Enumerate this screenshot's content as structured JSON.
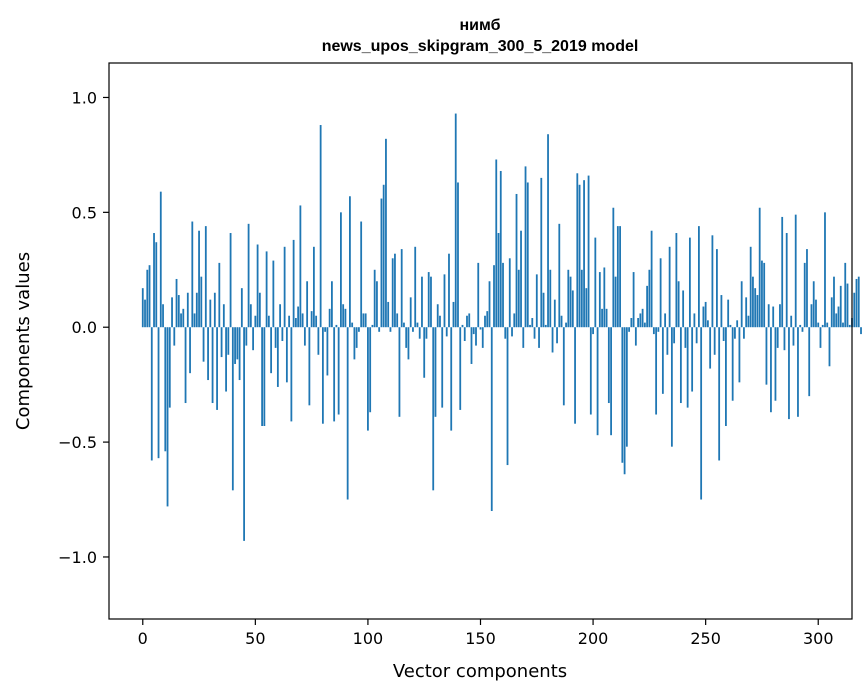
{
  "chart_data": {
    "type": "bar",
    "title": "нимб",
    "subtitle": "news_upos_skipgram_300_5_2019 model",
    "xlabel": "Vector components",
    "ylabel": "Components values",
    "xlim": [
      -15,
      315
    ],
    "ylim": [
      -1.27,
      1.15
    ],
    "xticks": [
      0,
      50,
      100,
      150,
      200,
      250,
      300
    ],
    "yticks": [
      -1.0,
      -0.5,
      0.0,
      0.5,
      1.0
    ],
    "ytick_labels": [
      "−1.0",
      "−0.5",
      "0.0",
      "0.5",
      "1.0"
    ],
    "bar_color": "#1f77b4",
    "grid": false,
    "values": [
      0.17,
      0.12,
      0.25,
      0.27,
      -0.58,
      0.41,
      0.37,
      -0.57,
      0.59,
      0.1,
      -0.54,
      -0.78,
      -0.35,
      0.13,
      -0.08,
      0.21,
      0.14,
      0.06,
      0.08,
      -0.33,
      0.15,
      -0.2,
      0.46,
      0.06,
      0.15,
      0.42,
      0.22,
      -0.15,
      0.44,
      -0.23,
      0.12,
      -0.33,
      0.15,
      -0.36,
      0.28,
      -0.13,
      0.1,
      -0.28,
      -0.12,
      0.41,
      -0.71,
      -0.16,
      -0.14,
      -0.23,
      0.17,
      -0.93,
      -0.08,
      0.45,
      0.1,
      -0.1,
      0.05,
      0.36,
      0.15,
      -0.43,
      -0.43,
      0.33,
      0.05,
      -0.2,
      0.29,
      -0.09,
      -0.26,
      0.1,
      -0.06,
      0.35,
      -0.24,
      0.05,
      -0.41,
      0.38,
      0.04,
      0.09,
      0.53,
      0.06,
      -0.08,
      0.2,
      -0.34,
      0.07,
      0.35,
      0.05,
      -0.12,
      0.88,
      -0.42,
      -0.02,
      -0.21,
      0.08,
      0.2,
      -0.41,
      0.01,
      -0.38,
      0.5,
      0.1,
      0.08,
      -0.75,
      0.57,
      0.02,
      -0.14,
      -0.09,
      -0.02,
      0.46,
      0.06,
      0.06,
      -0.45,
      -0.37,
      0.01,
      0.25,
      0.2,
      -0.02,
      0.56,
      0.62,
      0.82,
      0.11,
      -0.02,
      0.3,
      0.32,
      0.06,
      -0.39,
      0.34,
      0.02,
      -0.09,
      -0.14,
      0.13,
      -0.02,
      0.35,
      0.02,
      -0.05,
      0.22,
      -0.22,
      -0.05,
      0.24,
      0.22,
      -0.71,
      -0.39,
      0.1,
      0.05,
      -0.35,
      0.23,
      -0.04,
      0.32,
      -0.45,
      0.11,
      0.93,
      0.63,
      -0.36,
      0.01,
      -0.06,
      0.05,
      0.06,
      -0.16,
      -0.03,
      -0.08,
      0.28,
      -0.01,
      -0.09,
      0.05,
      0.07,
      0.2,
      -0.8,
      0.27,
      0.73,
      0.41,
      0.68,
      0.28,
      -0.05,
      -0.6,
      0.3,
      -0.04,
      0.06,
      0.58,
      0.25,
      0.42,
      -0.09,
      0.7,
      0.63,
      0.01,
      0.04,
      -0.05,
      0.23,
      -0.09,
      0.65,
      0.15,
      0.01,
      0.84,
      0.25,
      -0.11,
      0.12,
      -0.07,
      0.45,
      0.05,
      -0.34,
      0.02,
      0.25,
      0.22,
      0.16,
      -0.42,
      0.67,
      0.62,
      0.25,
      0.64,
      0.17,
      0.66,
      -0.38,
      -0.03,
      0.39,
      -0.47,
      0.24,
      0.08,
      0.26,
      0.08,
      -0.33,
      -0.47,
      0.52,
      0.22,
      0.44,
      0.44,
      -0.59,
      -0.64,
      -0.52,
      -0.02,
      0.04,
      0.24,
      -0.08,
      0.04,
      0.06,
      0.08,
      0.02,
      0.18,
      0.25,
      0.42,
      -0.03,
      -0.38,
      -0.02,
      0.3,
      -0.29,
      0.06,
      -0.12,
      0.35,
      -0.52,
      -0.07,
      0.41,
      0.2,
      -0.33,
      0.16,
      -0.09,
      -0.35,
      0.39,
      -0.28,
      0.06,
      -0.07,
      0.44,
      -0.75,
      0.09,
      0.11,
      0.03,
      -0.18,
      0.4,
      -0.12,
      0.34,
      -0.58,
      0.14,
      -0.06,
      -0.43,
      0.12,
      0.01,
      -0.32,
      -0.05,
      0.03,
      -0.24,
      0.2,
      -0.05,
      0.13,
      0.05,
      0.35,
      0.22,
      0.17,
      0.14,
      0.52,
      0.29,
      0.28,
      -0.25,
      0.1,
      -0.37,
      0.09,
      -0.32,
      -0.09,
      0.1,
      0.48,
      -0.1,
      0.41,
      -0.4,
      0.05,
      -0.08,
      0.49,
      -0.39,
      0.01,
      -0.02,
      0.28,
      0.34,
      -0.3,
      0.1,
      0.2,
      0.12,
      0.02,
      -0.09,
      0.01,
      0.5,
      0.02,
      -0.17,
      0.13,
      0.22,
      0.06,
      0.09,
      0.18,
      0.02,
      0.28,
      0.19,
      0.01,
      0.04,
      0.15,
      0.21,
      0.22,
      -0.03
    ]
  }
}
